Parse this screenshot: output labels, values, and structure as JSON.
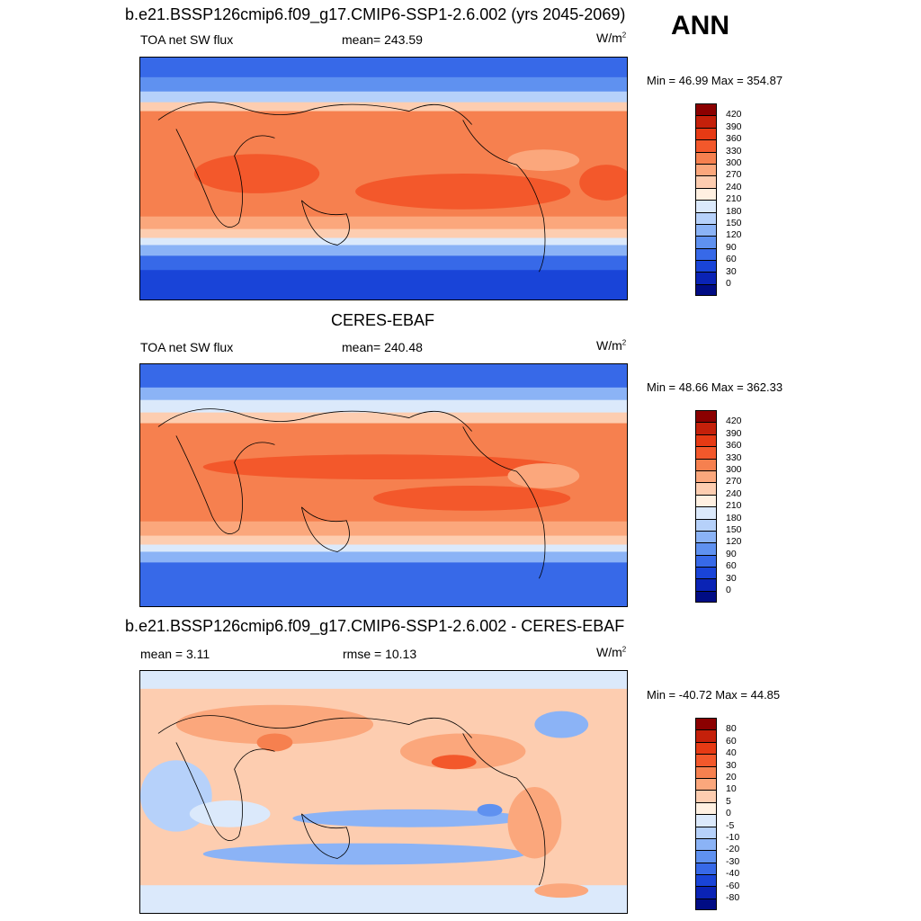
{
  "season": "ANN",
  "panels": [
    {
      "title": "b.e21.BSSP126cmip6.f09_g17.CMIP6-SSP1-2.6.002 (yrs 2045-2069)",
      "left_label": "TOA net SW flux",
      "center_label": "mean= 243.59",
      "units": "W/m",
      "minmax": "Min =  46.99 Max = 354.87"
    },
    {
      "title": "CERES-EBAF",
      "left_label": "TOA net SW flux",
      "center_label": "mean= 240.48",
      "units": "W/m",
      "minmax": "Min =  48.66 Max = 362.33"
    },
    {
      "title": "b.e21.BSSP126cmip6.f09_g17.CMIP6-SSP1-2.6.002 - CERES-EBAF",
      "left_label": "mean =   3.11",
      "center_label": "rmse =  10.13",
      "units": "W/m",
      "minmax": "Min = -40.72 Max =  44.85"
    }
  ],
  "units_sup": "2",
  "colorbar_abs": {
    "levels": [
      "420",
      "390",
      "360",
      "330",
      "300",
      "270",
      "240",
      "210",
      "180",
      "150",
      "120",
      "90",
      "60",
      "30",
      "0"
    ],
    "colors": [
      "#8b0000",
      "#c4200a",
      "#e63a14",
      "#f3582b",
      "#f6804f",
      "#fba77c",
      "#fdcdb0",
      "#fff0e1",
      "#dbe9fb",
      "#b6d1fa",
      "#8bb3f6",
      "#5f91f0",
      "#3769e8",
      "#1944d8",
      "#0a23b5",
      "#000c84"
    ]
  },
  "colorbar_diff": {
    "levels": [
      "80",
      "60",
      "40",
      "30",
      "20",
      "10",
      "5",
      "0",
      "-5",
      "-10",
      "-20",
      "-30",
      "-40",
      "-60",
      "-80"
    ],
    "colors": [
      "#8b0000",
      "#c4200a",
      "#e63a14",
      "#f3582b",
      "#f6804f",
      "#fba77c",
      "#fdcdb0",
      "#fff0e1",
      "#dbe9fb",
      "#b6d1fa",
      "#8bb3f6",
      "#5f91f0",
      "#3769e8",
      "#1944d8",
      "#0a23b5",
      "#000c84"
    ]
  }
}
